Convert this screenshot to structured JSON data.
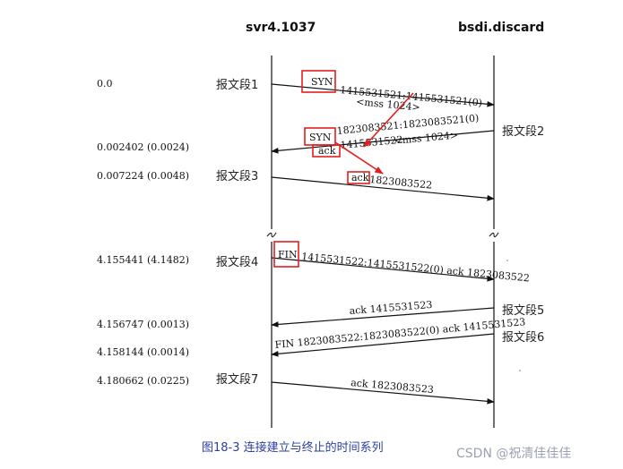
{
  "hosts": {
    "left": "svr4.1037",
    "right": "bsdi.discard"
  },
  "times": {
    "t1": "0.0",
    "t2": "0.002402 (0.0024)",
    "t3": "0.007224 (0.0048)",
    "t4": "4.155441 (4.1482)",
    "t5": "4.156747 (0.0013)",
    "t6": "4.158144 (0.0014)",
    "t7": "4.180662 (0.0225)"
  },
  "segments": {
    "s1": "报文段1",
    "s2": "报文段2",
    "s3": "报文段3",
    "s4": "报文段4",
    "s5": "报文段5",
    "s6": "报文段6",
    "s7": "报文段7"
  },
  "messages": {
    "m1_flag": "SYN",
    "m1_seq": "1415531521:1415531521(0)",
    "m1_opt": "<mss 1024>",
    "m2_flag": "SYN",
    "m2_seq": "1823083521:1823083521(0)",
    "m2_ack": "ack",
    "m2_acknum": "1415531522",
    "m2_opt": "<mss 1024>",
    "m3_ack": "ack",
    "m3_acknum": "1823083522",
    "m4_flag": "FIN",
    "m4_seq": "1415531522:1415531522(0) ack 1823083522",
    "m5_text": "ack 1415531523",
    "m6_text": "FIN  1823083522:1823083522(0) ack 1415531523",
    "m7_text": "ack 1823083523"
  },
  "caption": "图18-3   连接建立与终止的时间系列",
  "watermark": "CSDN @祝清佳佳佳",
  "colors": {
    "highlight": "#e02020",
    "caption": "#2b3fa3",
    "line": "#111111"
  }
}
